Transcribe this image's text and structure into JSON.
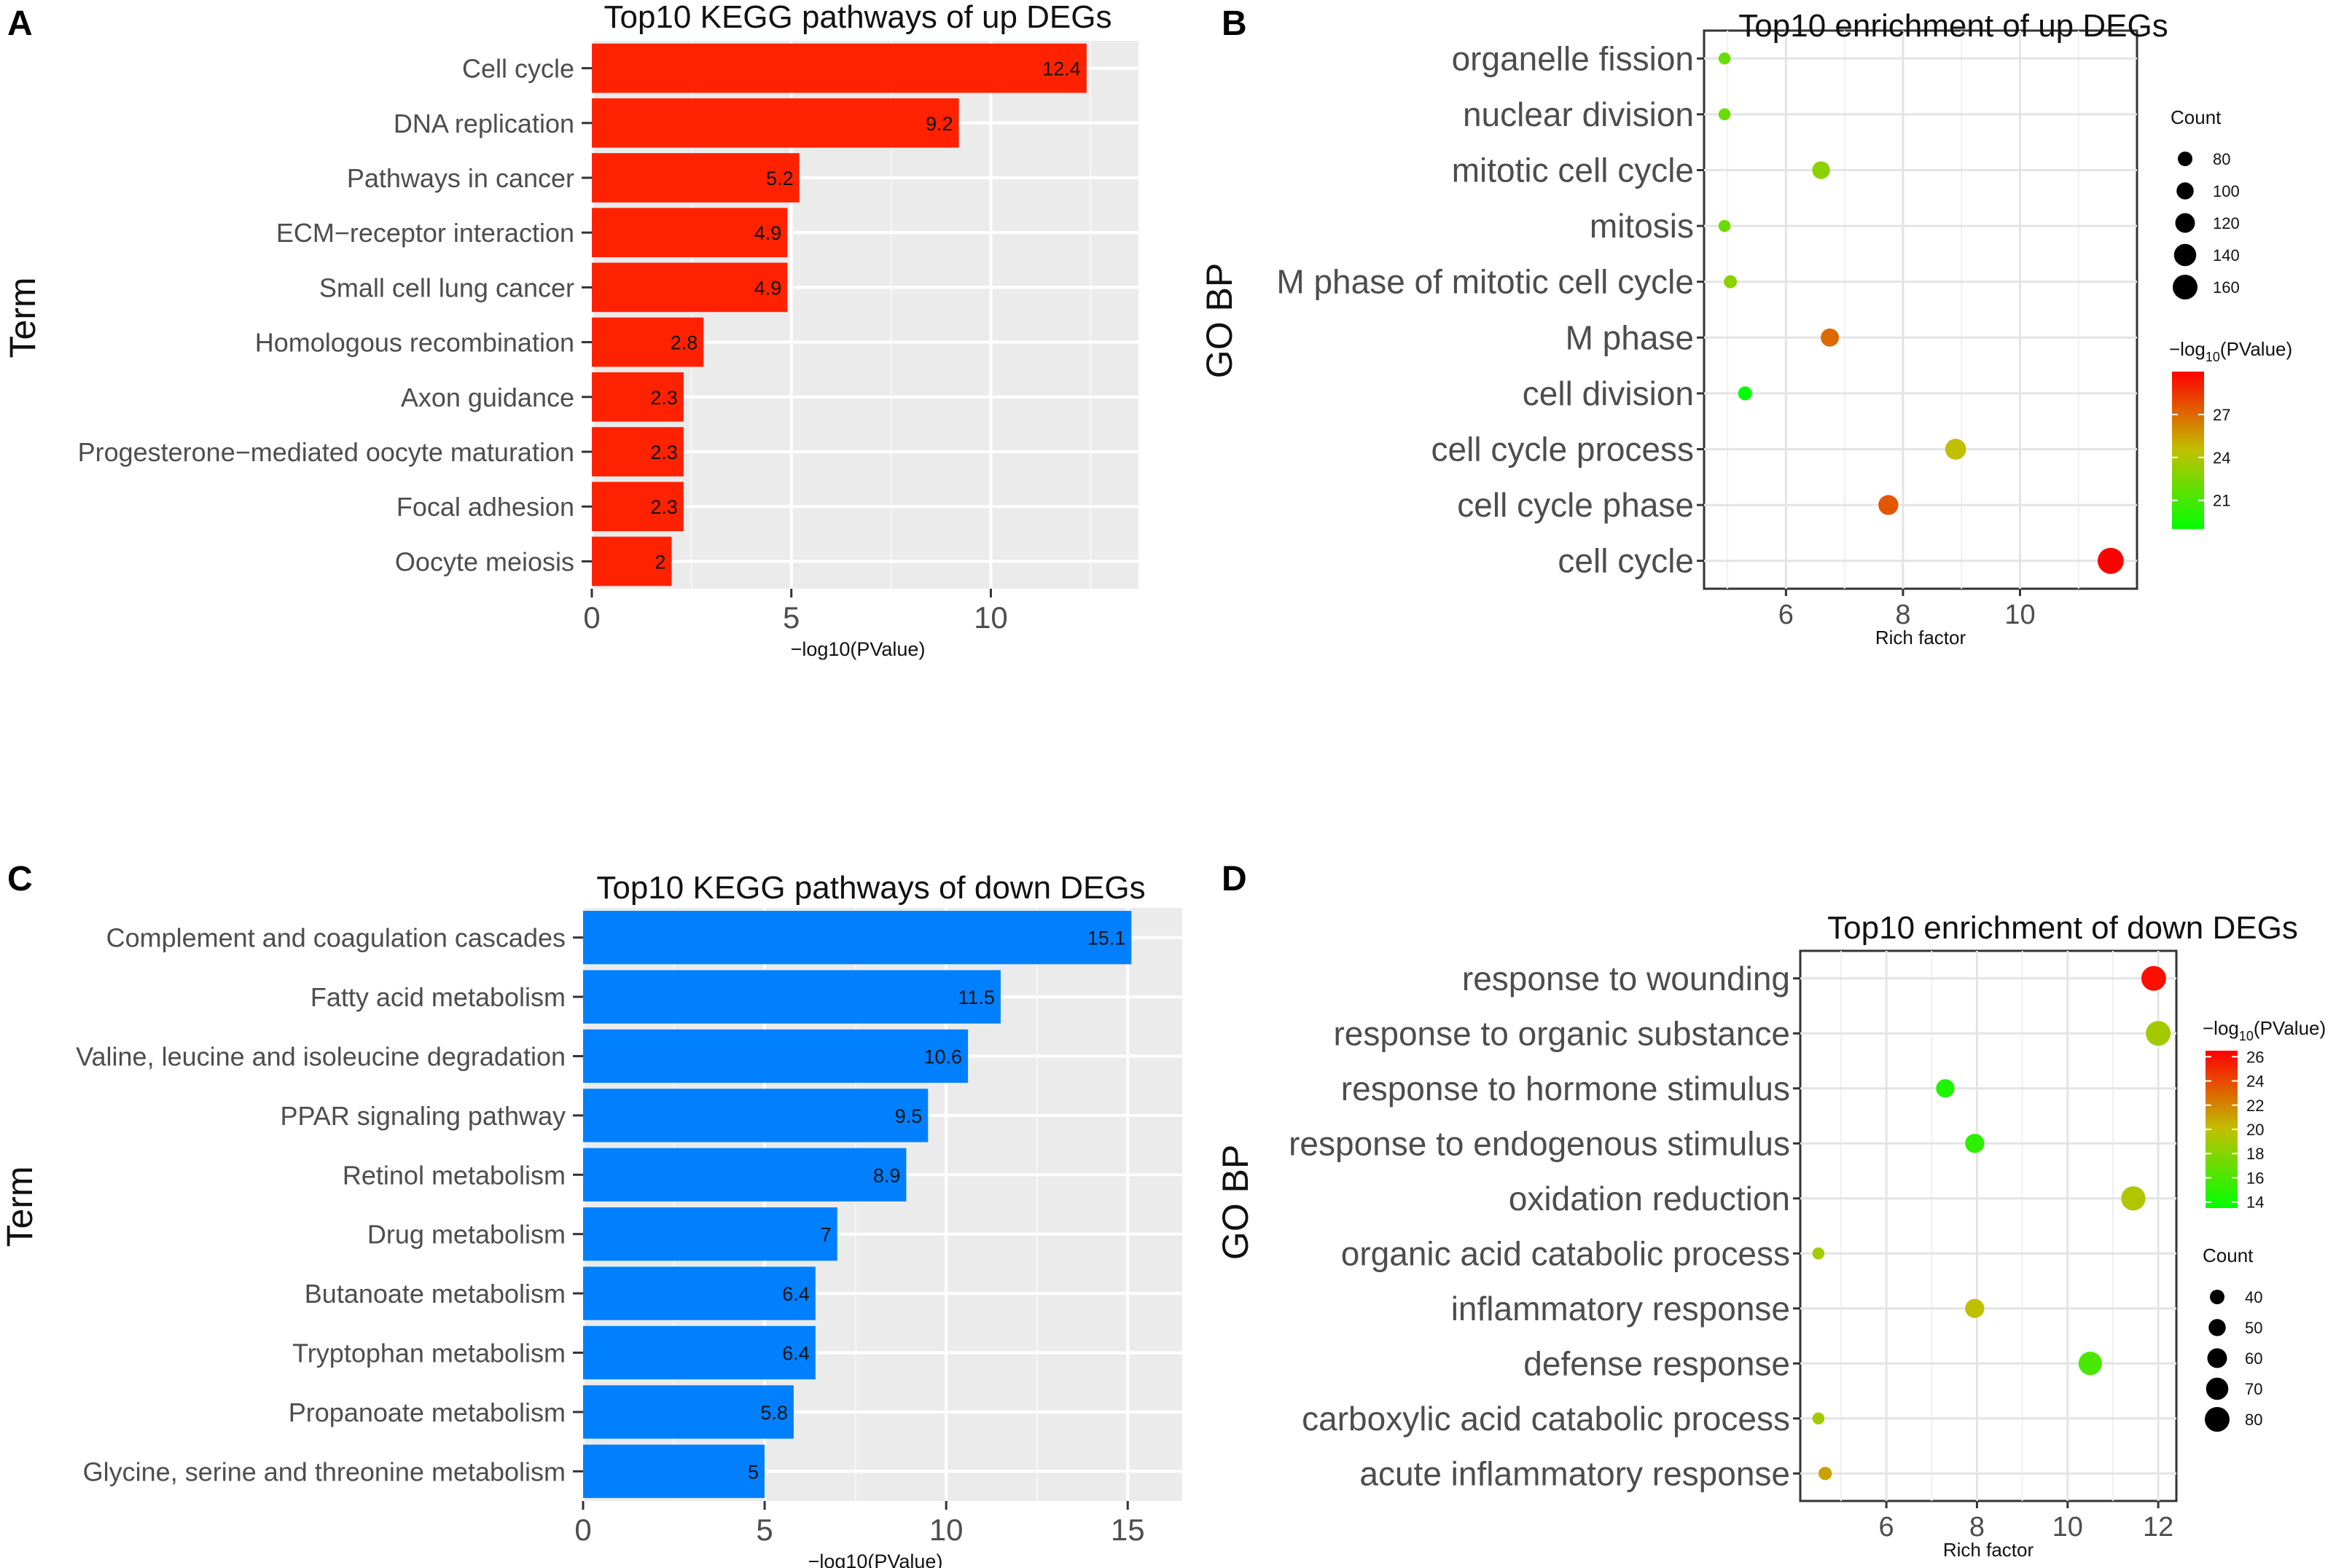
{
  "chart_data": [
    {
      "panel": "A",
      "type": "bar",
      "orientation": "horizontal",
      "title": "Top10 KEGG pathways of up DEGs",
      "xlabel": "−log10(PValue)",
      "ylabel": "Term",
      "xlim": [
        0,
        13.7
      ],
      "xticks": [
        0,
        5,
        10
      ],
      "color": "#ff2200",
      "categories": [
        "Cell cycle",
        "DNA replication",
        "Pathways in cancer",
        "ECM−receptor interaction",
        "Small cell lung cancer",
        "Homologous recombination",
        "Axon guidance",
        "Progesterone−mediated oocyte maturation",
        "Focal adhesion",
        "Oocyte meiosis"
      ],
      "values": [
        12.4,
        9.2,
        5.2,
        4.9,
        4.9,
        2.8,
        2.3,
        2.3,
        2.3,
        2
      ],
      "labels": [
        "12.4",
        "9.2",
        "5.2",
        "4.9",
        "4.9",
        "2.8",
        "2.3",
        "2.3",
        "2.3",
        "2"
      ]
    },
    {
      "panel": "B",
      "type": "scatter",
      "title": "Top10 enrichment of up DEGs",
      "xlabel": "Rich factor",
      "ylabel": "GO BP",
      "xlim": [
        4.6,
        12.0
      ],
      "xticks": [
        6,
        8,
        10
      ],
      "categories": [
        "organelle fission",
        "nuclear division",
        "mitotic cell cycle",
        "mitosis",
        "M phase of mitotic cell cycle",
        "M phase",
        "cell division",
        "cell cycle process",
        "cell cycle phase",
        "cell cycle"
      ],
      "x": [
        4.95,
        4.95,
        6.6,
        4.95,
        5.05,
        6.75,
        5.3,
        8.9,
        7.75,
        11.55
      ],
      "count": [
        60,
        60,
        105,
        60,
        68,
        108,
        75,
        130,
        122,
        170
      ],
      "pvalue": [
        22,
        22,
        23,
        22,
        23,
        27,
        19,
        24.5,
        27.5,
        30
      ],
      "size_legend": {
        "title": "Count",
        "values": [
          "80",
          "100",
          "120",
          "140",
          "160"
        ]
      },
      "color_legend": {
        "title_prefix": "−log",
        "title_sub": "10",
        "title_suffix": "(PValue)",
        "ticks": [
          "27",
          "24",
          "21"
        ],
        "range": [
          19,
          30
        ],
        "colors": [
          "#00ff00",
          "#ff0000"
        ]
      }
    },
    {
      "panel": "C",
      "type": "bar",
      "orientation": "horizontal",
      "title": "Top10 KEGG pathways of down DEGs",
      "xlabel": "−log10(PValue)",
      "ylabel": "Term",
      "xlim": [
        0,
        16.5
      ],
      "xticks": [
        0,
        5,
        10,
        15
      ],
      "color": "#0080ff",
      "categories": [
        "Complement and coagulation cascades",
        "Fatty acid metabolism",
        "Valine, leucine and isoleucine degradation",
        "PPAR signaling pathway",
        "Retinol metabolism",
        "Drug metabolism",
        "Butanoate metabolism",
        "Tryptophan metabolism",
        "Propanoate metabolism",
        "Glycine, serine and threonine metabolism"
      ],
      "values": [
        15.1,
        11.5,
        10.6,
        9.5,
        8.9,
        7,
        6.4,
        6.4,
        5.8,
        5
      ],
      "labels": [
        "15.1",
        "11.5",
        "10.6",
        "9.5",
        "8.9",
        "7",
        "6.4",
        "6.4",
        "5.8",
        "5"
      ]
    },
    {
      "panel": "D",
      "type": "scatter",
      "title": "Top10 enrichment of down DEGs",
      "xlabel": "Rich factor",
      "ylabel": "GO BP",
      "xlim": [
        4.1,
        12.4
      ],
      "xticks": [
        6,
        8,
        10,
        12
      ],
      "categories": [
        "response to wounding",
        "response to organic substance",
        "response to hormone stimulus",
        "response to endogenous stimulus",
        "oxidation reduction",
        "organic acid catabolic process",
        "inflammatory response",
        "defense response",
        "carboxylic acid catabolic process",
        "acute inflammatory response"
      ],
      "x": [
        11.9,
        12.0,
        7.3,
        7.95,
        11.45,
        4.5,
        7.95,
        10.5,
        4.5,
        4.65
      ],
      "count": [
        80,
        80,
        55,
        58,
        78,
        30,
        58,
        75,
        30,
        35
      ],
      "pvalue": [
        26,
        19,
        14.5,
        15,
        19.5,
        19,
        20,
        16,
        19,
        21
      ],
      "size_legend": {
        "title": "Count",
        "values": [
          "40",
          "50",
          "60",
          "70",
          "80"
        ]
      },
      "color_legend": {
        "title_prefix": "−log",
        "title_sub": "10",
        "title_suffix": "(PValue)",
        "ticks": [
          "26",
          "24",
          "22",
          "20",
          "18",
          "16",
          "14"
        ],
        "range": [
          13.5,
          26.5
        ],
        "colors": [
          "#00ff00",
          "#ff0000"
        ]
      }
    }
  ],
  "panel_letters": [
    "A",
    "B",
    "C",
    "D"
  ]
}
